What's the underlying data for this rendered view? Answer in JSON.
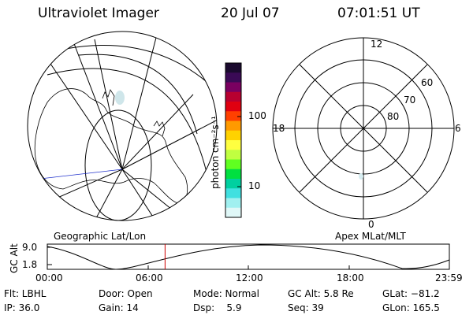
{
  "header": {
    "instrument": "Ultraviolet Imager",
    "date": "20 Jul 07",
    "time": "07:01:51 UT"
  },
  "left_panel": {
    "label": "Geographic Lat/Lon"
  },
  "right_panel": {
    "label": "Apex MLat/MLT",
    "mlt_labels": [
      "12",
      "18",
      "6",
      "0"
    ],
    "mlat_labels": [
      "60",
      "70",
      "80"
    ]
  },
  "colorbar": {
    "unit_label": "photon cm⁻²s⁻¹",
    "tick_labels": [
      "100",
      "10"
    ],
    "colors": [
      "#1a0a2e",
      "#3a0a55",
      "#7a0060",
      "#b80030",
      "#e00010",
      "#ff4000",
      "#ff9a00",
      "#ffd200",
      "#ffff40",
      "#c0ff40",
      "#60ff20",
      "#00e040",
      "#00d0a0",
      "#40e0e0",
      "#a0f0f0",
      "#e0f8f8"
    ]
  },
  "altitude_plot": {
    "ylabel": "GC Alt",
    "ytick_labels": [
      "9.0",
      "1.8"
    ],
    "xtick_labels": [
      "00:00",
      "06:00",
      "12:00",
      "18:00",
      "23:59"
    ],
    "current_time_hours": 7.03,
    "marker_color": "#cc0000"
  },
  "info": {
    "filter": "Flt: LBHL",
    "door": "Door: Open",
    "mode": "Mode: Normal",
    "gc_alt": "GC Alt: 5.8 Re",
    "glat": "GLat: −81.2",
    "ip": "IP: 36.0",
    "gain": "Gain: 14",
    "dsp": "Dsp:    5.9",
    "seq": "Seq: 39",
    "glon": "GLon: 165.5"
  }
}
